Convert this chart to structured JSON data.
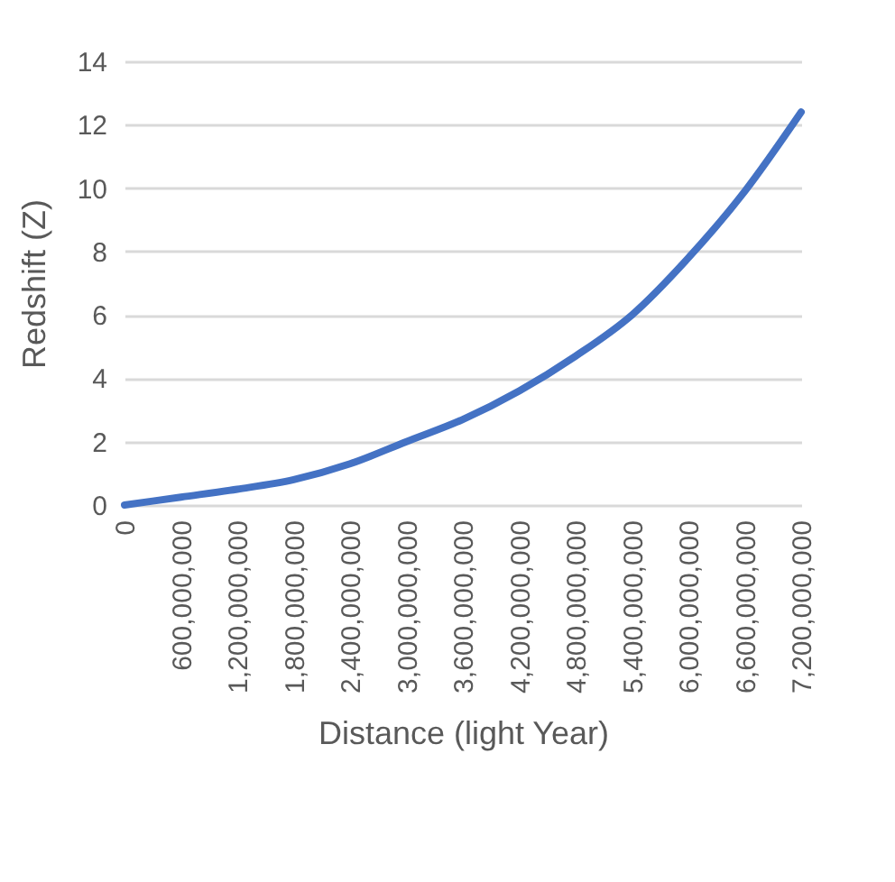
{
  "chart_data": {
    "type": "line",
    "xlabel": "Distance (light Year)",
    "ylabel": "Redshift (Z)",
    "x": [
      0,
      600000000,
      1200000000,
      1800000000,
      2400000000,
      3000000000,
      3600000000,
      4200000000,
      4800000000,
      5400000000,
      6000000000,
      6600000000,
      7200000000
    ],
    "series": [
      {
        "color": "#4472c4",
        "values": [
          0,
          0.25,
          0.5,
          0.8,
          1.3,
          2.0,
          2.7,
          3.6,
          4.7,
          6.0,
          7.8,
          9.9,
          12.4
        ]
      }
    ],
    "xlim": [
      0,
      7200000000
    ],
    "xticks": [
      0,
      {
        "value": 600000000,
        "label": "600,000,000"
      },
      {
        "value": 1200000000,
        "label": "1,200,000,000"
      },
      {
        "value": 1800000000,
        "label": "1,800,000,000"
      },
      {
        "value": 2400000000,
        "label": "2,400,000,000"
      },
      {
        "value": 3000000000,
        "label": "3,000,000,000"
      },
      {
        "value": 3600000000,
        "label": "3,600,000,000"
      },
      {
        "value": 4200000000,
        "label": "4,200,000,000"
      },
      {
        "value": 4800000000,
        "label": "4,800,000,000"
      },
      {
        "value": 5400000000,
        "label": "5,400,000,000"
      },
      {
        "value": 6000000000,
        "label": "6,000,000,000"
      },
      {
        "value": 6600000000,
        "label": "6,600,000,000"
      },
      {
        "value": 7200000000,
        "label": "7,200,000,000"
      }
    ],
    "ylim": [
      0,
      14
    ],
    "yticks": [
      0,
      2,
      4,
      6,
      8,
      10,
      12,
      14
    ],
    "grid": "y",
    "marker": "none",
    "line_style": "solid"
  }
}
